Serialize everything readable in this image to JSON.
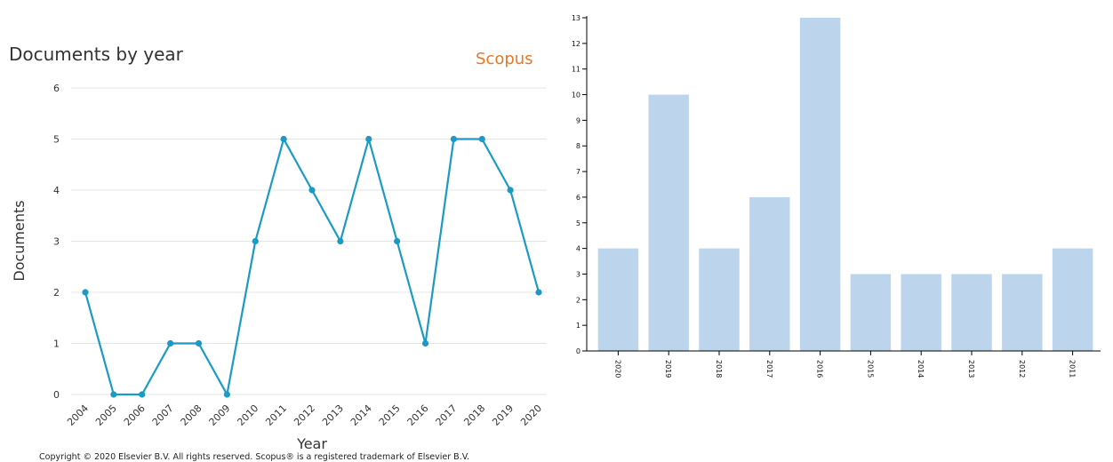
{
  "charts": [
    {
      "title": "Documents by year",
      "brand": "Scopus",
      "copyright": "Copyright © 2020 Elsevier B.V. All rights reserved. Scopus® is a registered trademark of Elsevier B.V.",
      "colors": {
        "line": "#1a9ac4",
        "brand": "#e87722",
        "grid": "#e4e4e4"
      }
    },
    {
      "colors": {
        "bar": "#bdd5ec",
        "axis": "#000000"
      }
    }
  ],
  "chart_data": [
    {
      "type": "line",
      "title": "Documents by year",
      "xlabel": "Year",
      "ylabel": "Documents",
      "ylim": [
        0,
        6
      ],
      "yticks": [
        0,
        1,
        2,
        3,
        4,
        5,
        6
      ],
      "grid": true,
      "categories": [
        "2004",
        "2005",
        "2006",
        "2007",
        "2008",
        "2009",
        "2010",
        "2011",
        "2012",
        "2013",
        "2014",
        "2015",
        "2016",
        "2017",
        "2018",
        "2019",
        "2020"
      ],
      "series": [
        {
          "values": [
            2,
            0,
            0,
            1,
            1,
            0,
            3,
            5,
            4,
            3,
            5,
            3,
            1,
            5,
            5,
            4,
            2
          ]
        }
      ]
    },
    {
      "type": "bar",
      "title": "",
      "xlabel": "",
      "ylabel": "",
      "ylim": [
        0,
        13
      ],
      "yticks": [
        0,
        1,
        2,
        3,
        4,
        5,
        6,
        7,
        8,
        9,
        10,
        11,
        12,
        13
      ],
      "grid": false,
      "categories": [
        "2020",
        "2019",
        "2018",
        "2017",
        "2016",
        "2015",
        "2014",
        "2013",
        "2012",
        "2011"
      ],
      "values": [
        4,
        10,
        4,
        6,
        13,
        3,
        3,
        3,
        3,
        4
      ]
    }
  ]
}
